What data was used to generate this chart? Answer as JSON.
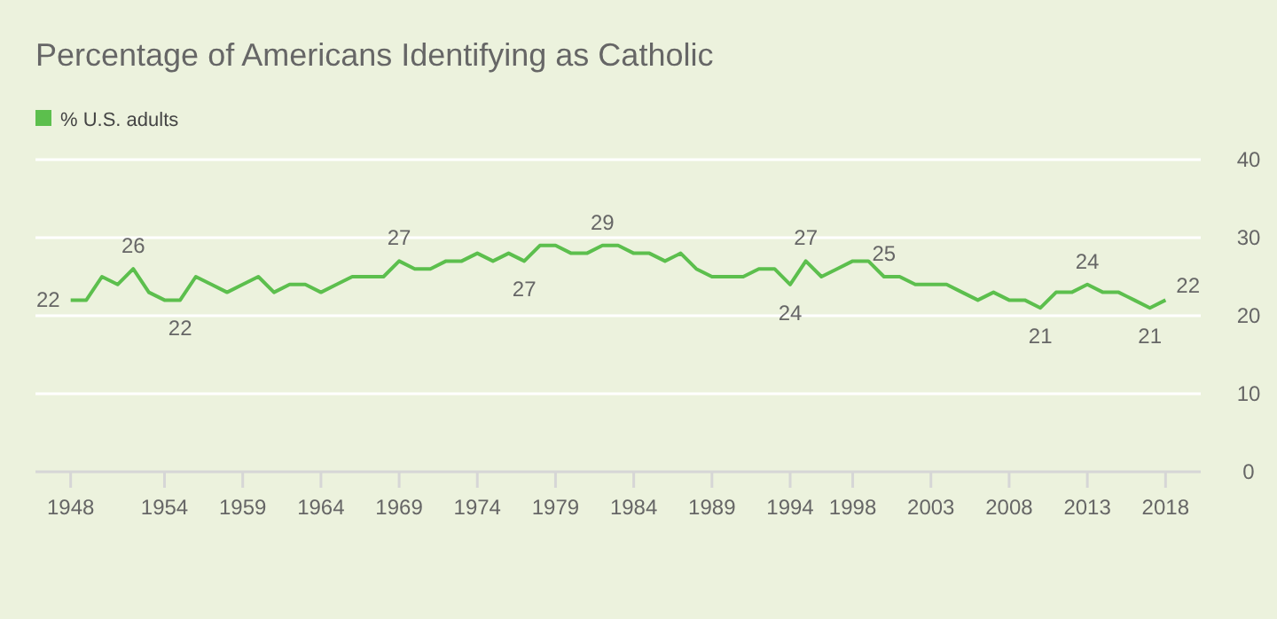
{
  "chart_data": {
    "type": "line",
    "title": "Percentage of Americans Identifying as Catholic",
    "x": [
      1948,
      1949,
      1950,
      1951,
      1952,
      1953,
      1954,
      1955,
      1956,
      1957,
      1958,
      1959,
      1960,
      1961,
      1962,
      1963,
      1964,
      1965,
      1966,
      1967,
      1968,
      1969,
      1970,
      1971,
      1972,
      1973,
      1974,
      1975,
      1976,
      1977,
      1978,
      1979,
      1980,
      1981,
      1982,
      1983,
      1984,
      1985,
      1986,
      1987,
      1988,
      1989,
      1990,
      1991,
      1992,
      1993,
      1994,
      1995,
      1996,
      1997,
      1998,
      1999,
      2000,
      2001,
      2002,
      2003,
      2004,
      2005,
      2006,
      2007,
      2008,
      2009,
      2010,
      2011,
      2012,
      2013,
      2014,
      2015,
      2016,
      2017,
      2018
    ],
    "series": [
      {
        "name": "% U.S. adults",
        "color": "#5cbf4d",
        "values": [
          22,
          22,
          25,
          24,
          26,
          23,
          22,
          22,
          25,
          24,
          23,
          24,
          25,
          23,
          24,
          24,
          23,
          24,
          25,
          25,
          25,
          27,
          26,
          26,
          27,
          27,
          28,
          27,
          28,
          27,
          29,
          29,
          28,
          28,
          29,
          29,
          28,
          28,
          27,
          28,
          26,
          25,
          25,
          25,
          26,
          26,
          24,
          27,
          25,
          26,
          27,
          27,
          25,
          25,
          24,
          24,
          24,
          23,
          22,
          23,
          22,
          22,
          21,
          23,
          23,
          24,
          23,
          23,
          22,
          21,
          22
        ],
        "value_labels": [
          "22",
          null,
          null,
          null,
          "26",
          null,
          null,
          "22",
          null,
          null,
          null,
          null,
          null,
          null,
          null,
          null,
          null,
          null,
          null,
          null,
          null,
          "27",
          null,
          null,
          null,
          null,
          null,
          null,
          null,
          "27",
          null,
          null,
          null,
          null,
          "29",
          null,
          null,
          null,
          null,
          null,
          null,
          null,
          null,
          null,
          null,
          null,
          "24",
          "27",
          null,
          null,
          null,
          null,
          "25",
          null,
          null,
          null,
          null,
          null,
          null,
          null,
          null,
          null,
          "21",
          null,
          null,
          "24",
          null,
          null,
          null,
          "21",
          "22"
        ]
      }
    ],
    "xlim": [
      1945.75,
      2020.25
    ],
    "xticks": [
      1948,
      1954,
      1959,
      1964,
      1969,
      1974,
      1979,
      1984,
      1989,
      1994,
      1998,
      2003,
      2008,
      2013,
      2018
    ],
    "ylim": [
      0,
      40
    ],
    "yticks": [
      0,
      10,
      20,
      30,
      40
    ],
    "grid": "y",
    "legend": "top left"
  }
}
